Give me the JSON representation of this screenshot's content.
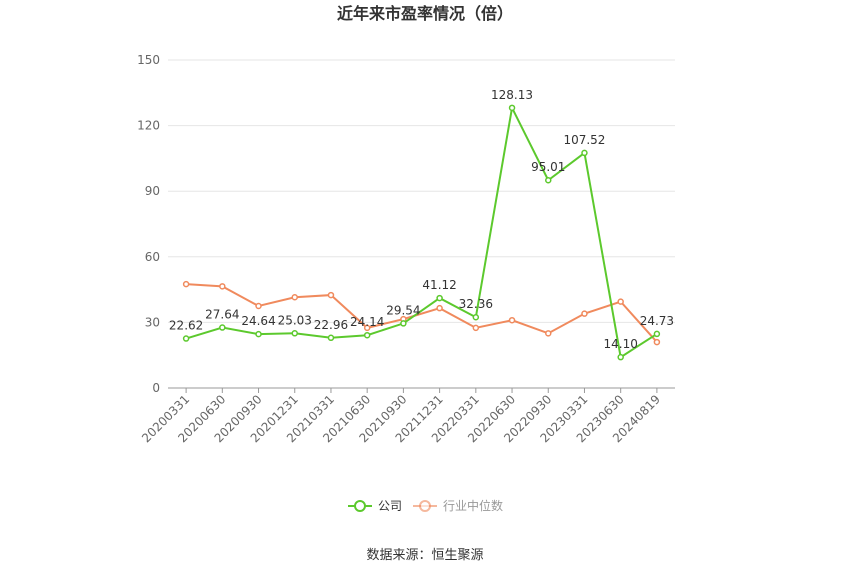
{
  "chart_data": {
    "type": "line",
    "title": "近年来市盈率情况（倍）",
    "categories": [
      "20200331",
      "20200630",
      "20200930",
      "20201231",
      "20210331",
      "20210630",
      "20210930",
      "20211231",
      "20220331",
      "20220630",
      "20220930",
      "20230331",
      "20230630",
      "20240819"
    ],
    "series": [
      {
        "name": "公司",
        "color": "#5cc92d",
        "values": [
          22.62,
          27.64,
          24.64,
          25.03,
          22.96,
          24.14,
          29.54,
          41.12,
          32.36,
          128.13,
          95.01,
          107.52,
          14.1,
          24.73
        ],
        "labels": [
          "22.62",
          "27.64",
          "24.64",
          "25.03",
          "22.96",
          "24.14",
          "29.54",
          "41.12",
          "32.36",
          "128.13",
          "95.01",
          "107.52",
          "14.10",
          "24.73"
        ]
      },
      {
        "name": "行业中位数",
        "color": "#f08a5d",
        "values": [
          47.5,
          46.5,
          37.5,
          41.5,
          42.5,
          27.5,
          31.5,
          36.5,
          27.5,
          31,
          25,
          34,
          39.5,
          21
        ]
      }
    ],
    "ylim": [
      0,
      150
    ],
    "yticks": [
      0,
      30,
      60,
      90,
      120,
      150
    ],
    "legend_position": "bottom",
    "grid": true
  },
  "source": "数据来源：恒生聚源"
}
